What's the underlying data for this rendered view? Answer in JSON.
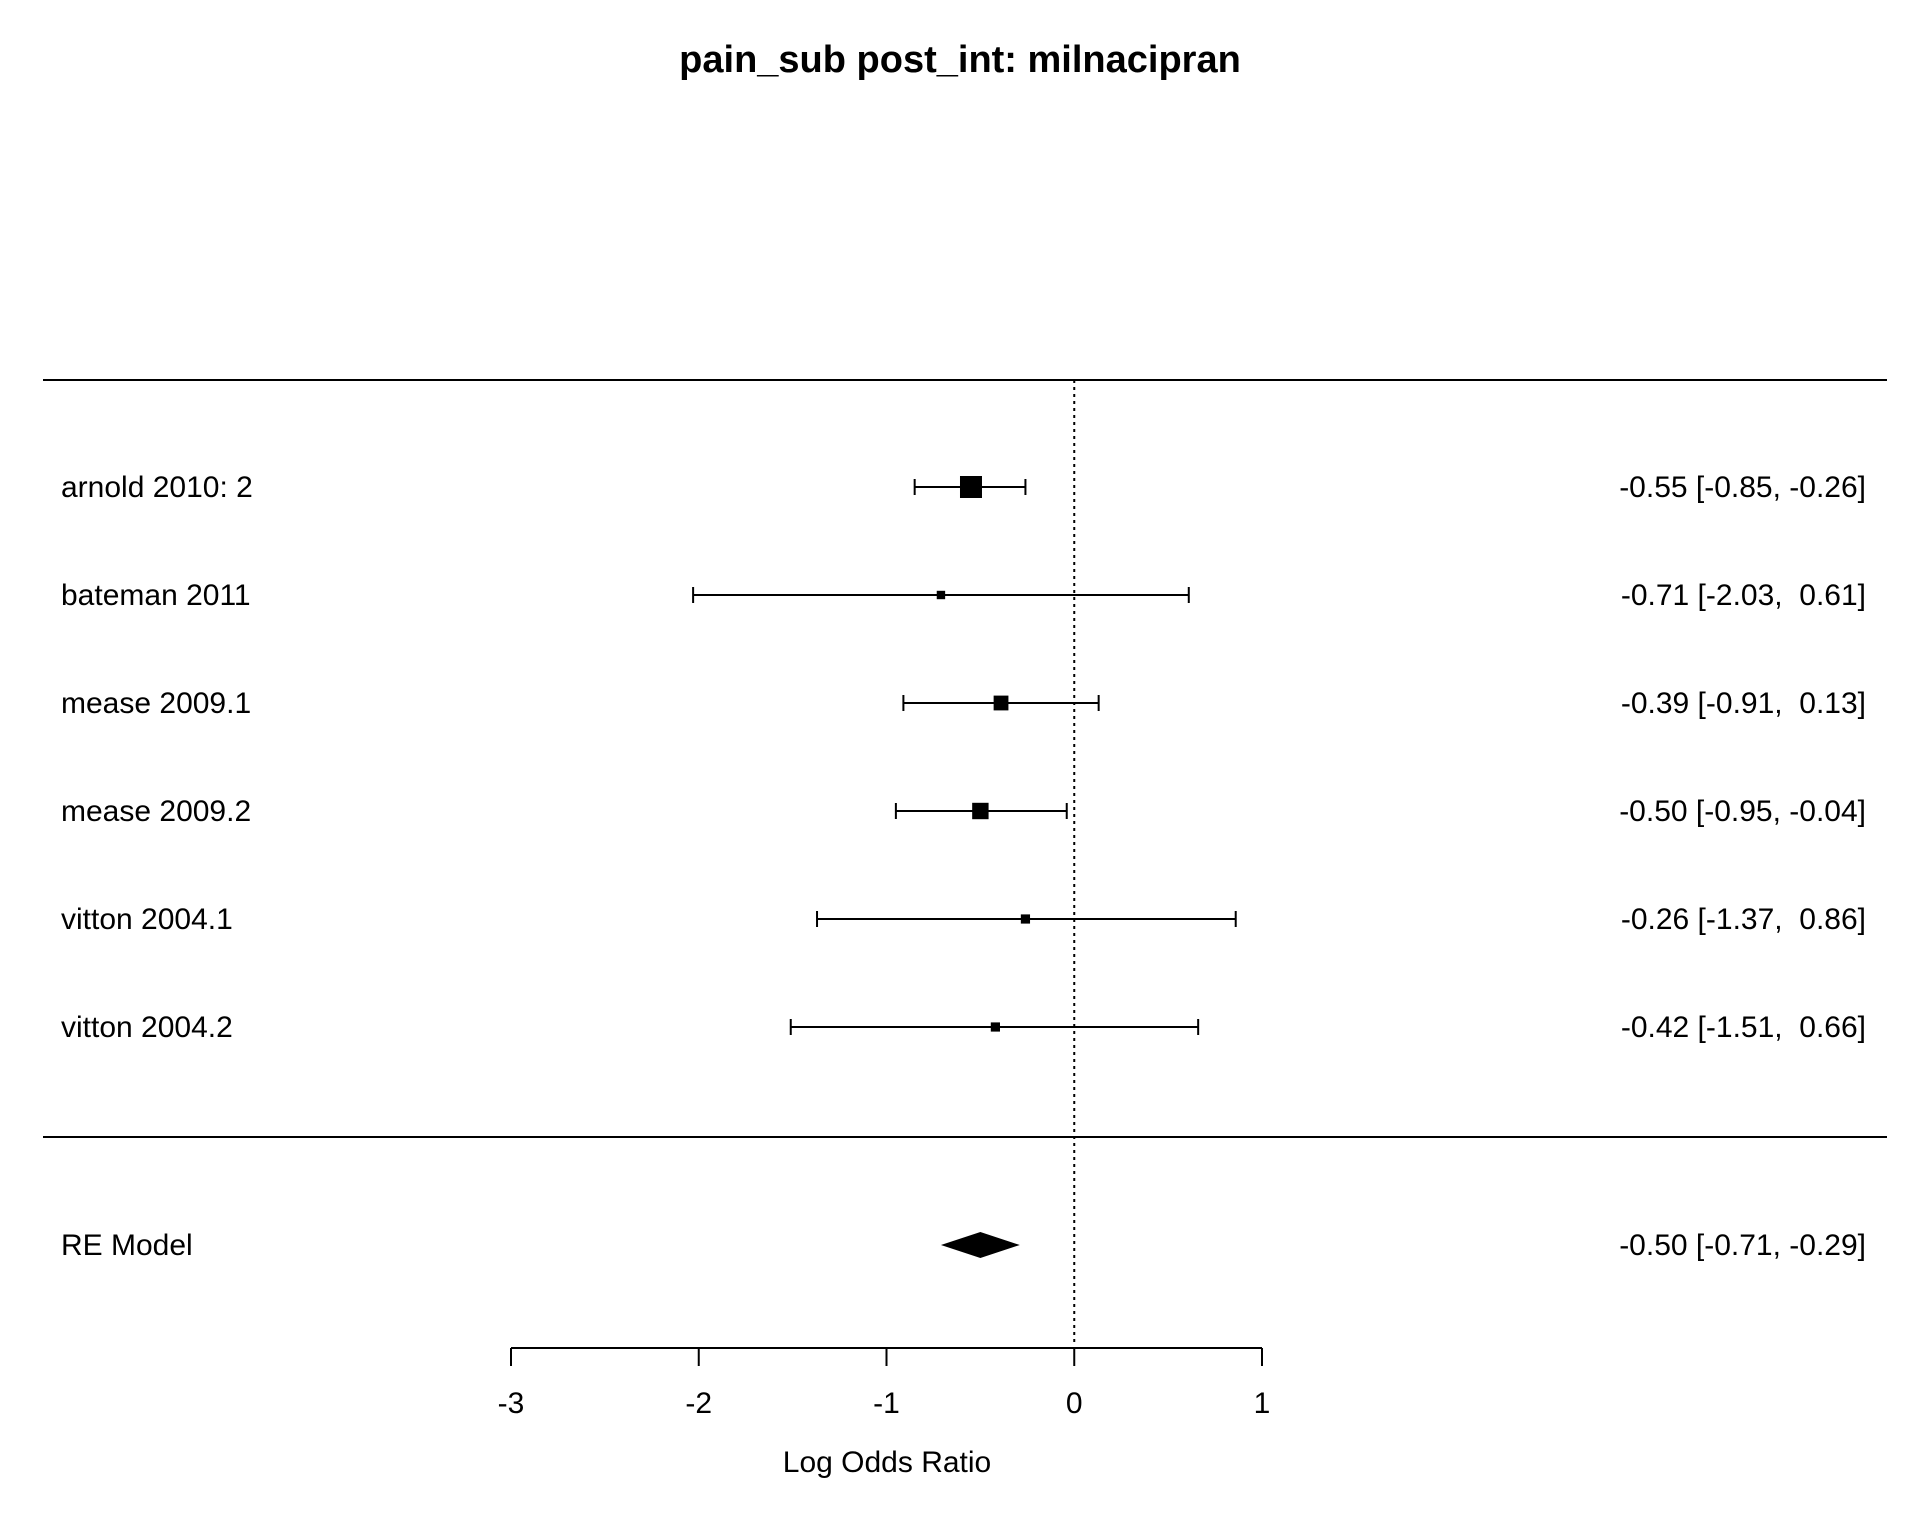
{
  "chart_data": {
    "type": "forest",
    "title": "pain_sub post_int: milnacipran",
    "xlabel": "Log Odds Ratio",
    "xlim": [
      -3,
      1
    ],
    "xticks": [
      -3,
      -2,
      -1,
      0,
      1
    ],
    "reference_line": 0,
    "studies": [
      {
        "label": "arnold 2010: 2",
        "estimate": -0.55,
        "lower": -0.85,
        "upper": -0.26,
        "ci_text": "-0.55 [-0.85, -0.26]",
        "weight": 1.0
      },
      {
        "label": "bateman 2011",
        "estimate": -0.71,
        "lower": -2.03,
        "upper": 0.61,
        "ci_text": "-0.71 [-2.03,  0.61]",
        "weight": 0.15
      },
      {
        "label": "mease 2009.1",
        "estimate": -0.39,
        "lower": -0.91,
        "upper": 0.13,
        "ci_text": "-0.39 [-0.91,  0.13]",
        "weight": 0.55
      },
      {
        "label": "mease 2009.2",
        "estimate": -0.5,
        "lower": -0.95,
        "upper": -0.04,
        "ci_text": "-0.50 [-0.95, -0.04]",
        "weight": 0.65
      },
      {
        "label": "vitton 2004.1",
        "estimate": -0.26,
        "lower": -1.37,
        "upper": 0.86,
        "ci_text": "-0.26 [-1.37,  0.86]",
        "weight": 0.2
      },
      {
        "label": "vitton 2004.2",
        "estimate": -0.42,
        "lower": -1.51,
        "upper": 0.66,
        "ci_text": "-0.42 [-1.51,  0.66]",
        "weight": 0.2
      }
    ],
    "summary": {
      "label": "RE Model",
      "estimate": -0.5,
      "lower": -0.71,
      "upper": -0.29,
      "ci_text": "-0.50 [-0.71, -0.29]"
    }
  }
}
